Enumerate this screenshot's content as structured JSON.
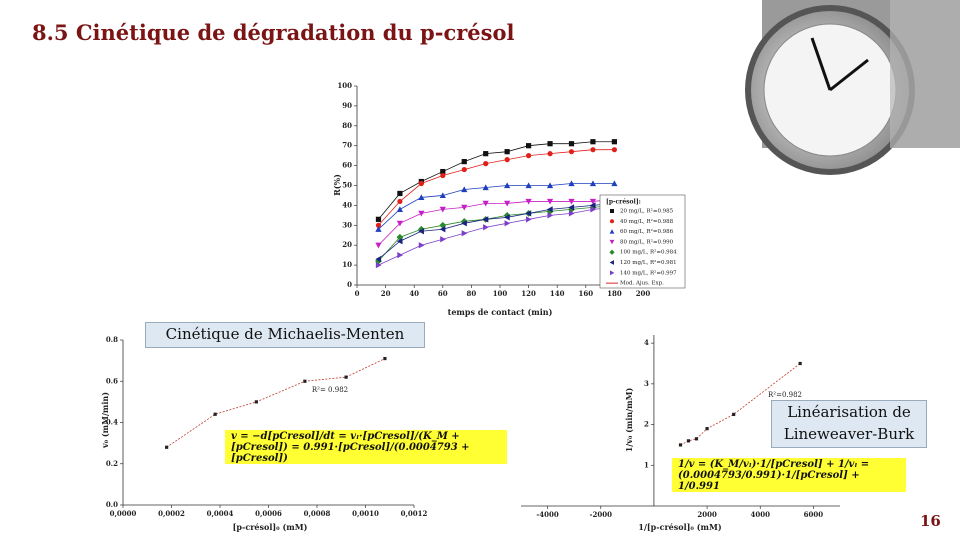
{
  "title": "8.5 Cinétique de dégradation du p-crésol",
  "page_number": "16",
  "chart_data": [
    {
      "type": "scatter",
      "x_label": "temps de contact (min)",
      "y_label": "R(%)",
      "x": [
        15,
        30,
        45,
        60,
        75,
        90,
        105,
        120,
        135,
        150,
        165,
        180
      ],
      "xlim": [
        0,
        200
      ],
      "xticks": [
        0,
        20,
        40,
        60,
        80,
        100,
        120,
        140,
        160,
        180,
        200
      ],
      "ylim": [
        0,
        100
      ],
      "yticks": [
        0,
        10,
        20,
        30,
        40,
        50,
        60,
        70,
        80,
        90,
        100
      ],
      "legend_title": "[p-crésol]:",
      "fit_label": "Mod. Ajus. Exp.",
      "fit_color": "#d62728",
      "series": [
        {
          "name": "20 mg/L, R²=0.985",
          "color": "#111111",
          "marker": "square",
          "values": [
            33,
            46,
            52,
            57,
            62,
            66,
            67,
            70,
            71,
            71,
            72,
            72
          ]
        },
        {
          "name": "40 mg/L, R²=0.988",
          "color": "#e0201b",
          "marker": "circle",
          "values": [
            30,
            42,
            51,
            55,
            58,
            61,
            63,
            65,
            66,
            67,
            68,
            68
          ]
        },
        {
          "name": "60 mg/L, R²=0.986",
          "color": "#1f3fbf",
          "marker": "triangle-up",
          "values": [
            28,
            38,
            44,
            45,
            48,
            49,
            50,
            50,
            50,
            51,
            51,
            51
          ]
        },
        {
          "name": "80 mg/L, R²=0.990",
          "color": "#c81ec8",
          "marker": "triangle-down",
          "values": [
            20,
            31,
            36,
            38,
            39,
            41,
            41,
            42,
            42,
            42,
            42,
            43
          ]
        },
        {
          "name": "100 mg/L, R²=0.984",
          "color": "#2a8a2a",
          "marker": "diamond",
          "values": [
            12,
            24,
            28,
            30,
            32,
            33,
            35,
            36,
            37,
            38,
            39,
            40
          ]
        },
        {
          "name": "120 mg/L, R²=0.981",
          "color": "#1a237e",
          "marker": "triangle-left",
          "values": [
            13,
            22,
            27,
            28,
            31,
            33,
            34,
            36,
            38,
            39,
            40,
            41
          ]
        },
        {
          "name": "140 mg/L, R²=0.997",
          "color": "#7b3fc8",
          "marker": "triangle-right",
          "values": [
            10,
            15,
            20,
            23,
            26,
            29,
            31,
            33,
            35,
            36,
            38,
            39
          ]
        }
      ]
    },
    {
      "type": "scatter",
      "title": "Cinétique de Michaelis-Menten",
      "x_label": "[p-crésol]₀ (mM)",
      "y_label": "v₀ (mM/min)",
      "annotation": "R²= 0.982",
      "equation": "v = −d[pCresol]/dt = vₗ·[pCresol]/(K_M + [pCresol]) = 0.991·[pCresol]/(0.0004793 + [pCresol])",
      "color": "#222222",
      "line_color": "#c0392b",
      "x": [
        0.00018,
        0.00038,
        0.00055,
        0.00075,
        0.00092,
        0.00108
      ],
      "values": [
        0.28,
        0.44,
        0.5,
        0.6,
        0.62,
        0.71
      ],
      "xlim": [
        0,
        0.0012
      ],
      "xticks": [
        {
          "value": 0,
          "label": "0,0000"
        },
        {
          "value": 0.0002,
          "label": "0,0002"
        },
        {
          "value": 0.0004,
          "label": "0,0004"
        },
        {
          "value": 0.0006,
          "label": "0,0006"
        },
        {
          "value": 0.0008,
          "label": "0,0008"
        },
        {
          "value": 0.001,
          "label": "0,0010"
        },
        {
          "value": 0.0012,
          "label": "0,0012"
        }
      ],
      "ylim": [
        0,
        0.8
      ],
      "yticks": [
        {
          "value": 0,
          "label": "0.0"
        },
        {
          "value": 0.2,
          "label": "0.2"
        },
        {
          "value": 0.4,
          "label": "0.4"
        },
        {
          "value": 0.6,
          "label": "0.6"
        },
        {
          "value": 0.8,
          "label": "0.8"
        }
      ]
    },
    {
      "type": "scatter",
      "title": "Linéarisation de Lineweaver-Burk",
      "x_label": "1/[p-crésol]₀ (mM)",
      "y_label": "1/v₀ (min/mM)",
      "annotation": "R²=0.982",
      "equation": "1/v = (K_M/vₗ)·1/[pCresol] + 1/vₗ = (0.0004793/0.991)·1/[pCresol] + 1/0.991",
      "color": "#222222",
      "line_color": "#c0392b",
      "x": [
        1000,
        1300,
        1600,
        2000,
        3000,
        5500
      ],
      "values": [
        1.5,
        1.6,
        1.65,
        1.9,
        2.25,
        3.5
      ],
      "xlim": [
        -5000,
        7000
      ],
      "xticks": [
        -4000,
        -2000,
        2000,
        4000,
        6000
      ],
      "ylim": [
        0,
        4.2
      ],
      "yticks": [
        1,
        2,
        3,
        4
      ]
    }
  ]
}
